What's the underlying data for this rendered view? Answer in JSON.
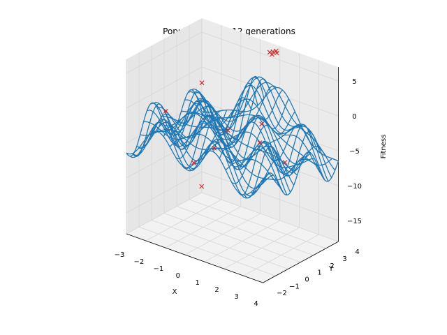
{
  "chart_data": {
    "type": "surface-wireframe-scatter-3d",
    "title": "Population after 12 generations",
    "xlabel": "X",
    "ylabel": "Y",
    "zlabel": "Fitness",
    "xlim": [
      -3,
      4
    ],
    "ylim": [
      -2,
      4
    ],
    "zlim": [
      -18,
      7
    ],
    "xticks": [
      -3,
      -2,
      -1,
      0,
      1,
      2,
      3,
      4
    ],
    "yticks": [
      -2,
      -1,
      0,
      1,
      2,
      3,
      4
    ],
    "zticks": [
      -15,
      -10,
      -5,
      0,
      5
    ],
    "grid": true,
    "wire_color": "#1f77b4",
    "marker_color": "#d62728",
    "marker": "x",
    "population": [
      {
        "x": 0.9,
        "y": 3.6,
        "z": 6.5
      },
      {
        "x": 1.0,
        "y": 3.7,
        "z": 6.6
      },
      {
        "x": 0.8,
        "y": 3.5,
        "z": 6.4
      },
      {
        "x": 1.1,
        "y": 3.6,
        "z": 6.5
      },
      {
        "x": 0.95,
        "y": 3.45,
        "z": 6.3
      },
      {
        "x": -1.9,
        "y": 2.3,
        "z": 0.5
      },
      {
        "x": -2.6,
        "y": 0.5,
        "z": -2.5
      },
      {
        "x": 0.2,
        "y": 1.1,
        "z": -3.0
      },
      {
        "x": 1.1,
        "y": 2.4,
        "z": -2.5
      },
      {
        "x": 1.9,
        "y": 1.0,
        "z": -3.0
      },
      {
        "x": 3.0,
        "y": 1.3,
        "z": -5.0
      },
      {
        "x": 0.6,
        "y": -0.6,
        "z": -3.5
      },
      {
        "x": 0.0,
        "y": -1.3,
        "z": -5.5
      },
      {
        "x": 0.6,
        "y": -1.6,
        "z": -8.0
      }
    ]
  }
}
